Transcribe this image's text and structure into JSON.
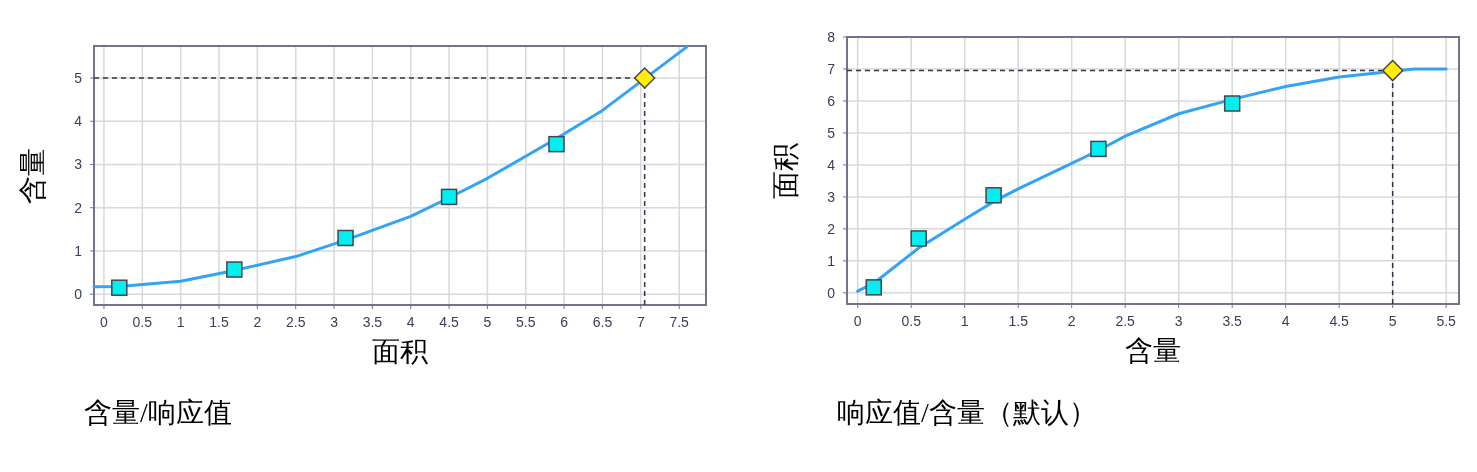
{
  "chart_data": [
    {
      "type": "line",
      "xlabel": "面积",
      "ylabel": "含量",
      "annotations": [
        "含量/响应值"
      ],
      "xlim": [
        -0.13,
        7.85
      ],
      "ylim": [
        -0.25,
        5.74
      ],
      "xticks": [
        0,
        0.5,
        1,
        1.5,
        2,
        2.5,
        3,
        3.5,
        4,
        4.5,
        5,
        5.5,
        6,
        6.5,
        7,
        7.5
      ],
      "yticks": [
        0,
        1,
        2,
        3,
        4,
        5
      ],
      "grid": true,
      "series": [
        {
          "color": "#33a3f4",
          "line_style": "solid",
          "marker": "none",
          "x": [
            -0.13,
            0.2,
            1,
            1.7,
            2.5,
            3.15,
            4,
            4.5,
            5,
            5.9,
            6.5,
            7.6
          ],
          "values": [
            0.17,
            0.18,
            0.3,
            0.55,
            0.87,
            1.25,
            1.8,
            2.23,
            2.68,
            3.6,
            4.25,
            5.72
          ]
        },
        {
          "type": "scatter",
          "color": "#00f0f0",
          "marker": "square",
          "x": [
            0.2,
            1.7,
            3.15,
            4.5,
            5.9
          ],
          "values": [
            0.15,
            0.57,
            1.3,
            2.25,
            3.47
          ]
        },
        {
          "type": "scatter",
          "color": "#ffee00",
          "marker": "diamond",
          "x": [
            7.05
          ],
          "values": [
            5.0
          ]
        }
      ],
      "ref_lines": [
        {
          "axis": "x",
          "value": 7.05,
          "color": "#333344",
          "line_style": "dashed"
        },
        {
          "axis": "y",
          "value": 5,
          "color": "#333344",
          "line_style": "dashed"
        }
      ]
    },
    {
      "type": "line",
      "xlabel": "含量",
      "ylabel": "面积",
      "annotations": [
        "响应值/含量（默认）"
      ],
      "xlim": [
        -0.1,
        5.62
      ],
      "ylim": [
        -0.35,
        8
      ],
      "xticks": [
        0,
        0.5,
        1,
        1.5,
        2,
        2.5,
        3,
        3.5,
        4,
        4.5,
        5,
        5.5
      ],
      "yticks": [
        0,
        1,
        2,
        3,
        4,
        5,
        6,
        7,
        8
      ],
      "grid": true,
      "series": [
        {
          "color": "#33a3f4",
          "line_style": "solid",
          "marker": "none",
          "x": [
            0,
            0.15,
            0.57,
            1,
            1.27,
            1.5,
            2,
            2.25,
            2.5,
            3,
            3.5,
            4,
            4.5,
            5.2,
            5.5
          ],
          "values": [
            0.05,
            0.3,
            1.4,
            2.3,
            2.85,
            3.25,
            4.05,
            4.45,
            4.9,
            5.6,
            6.05,
            6.45,
            6.75,
            7.0,
            7.0
          ]
        },
        {
          "type": "scatter",
          "color": "#00f0f0",
          "marker": "square",
          "x": [
            0.15,
            0.57,
            1.27,
            2.25,
            3.5
          ],
          "values": [
            0.17,
            1.7,
            3.05,
            4.5,
            5.92
          ]
        },
        {
          "type": "scatter",
          "color": "#ffee00",
          "marker": "diamond",
          "x": [
            5.0
          ],
          "values": [
            6.95
          ]
        }
      ],
      "ref_lines": [
        {
          "axis": "x",
          "value": 5,
          "color": "#333344",
          "line_style": "dashed"
        },
        {
          "axis": "y",
          "value": 6.95,
          "color": "#333344",
          "line_style": "dashed"
        }
      ]
    }
  ]
}
